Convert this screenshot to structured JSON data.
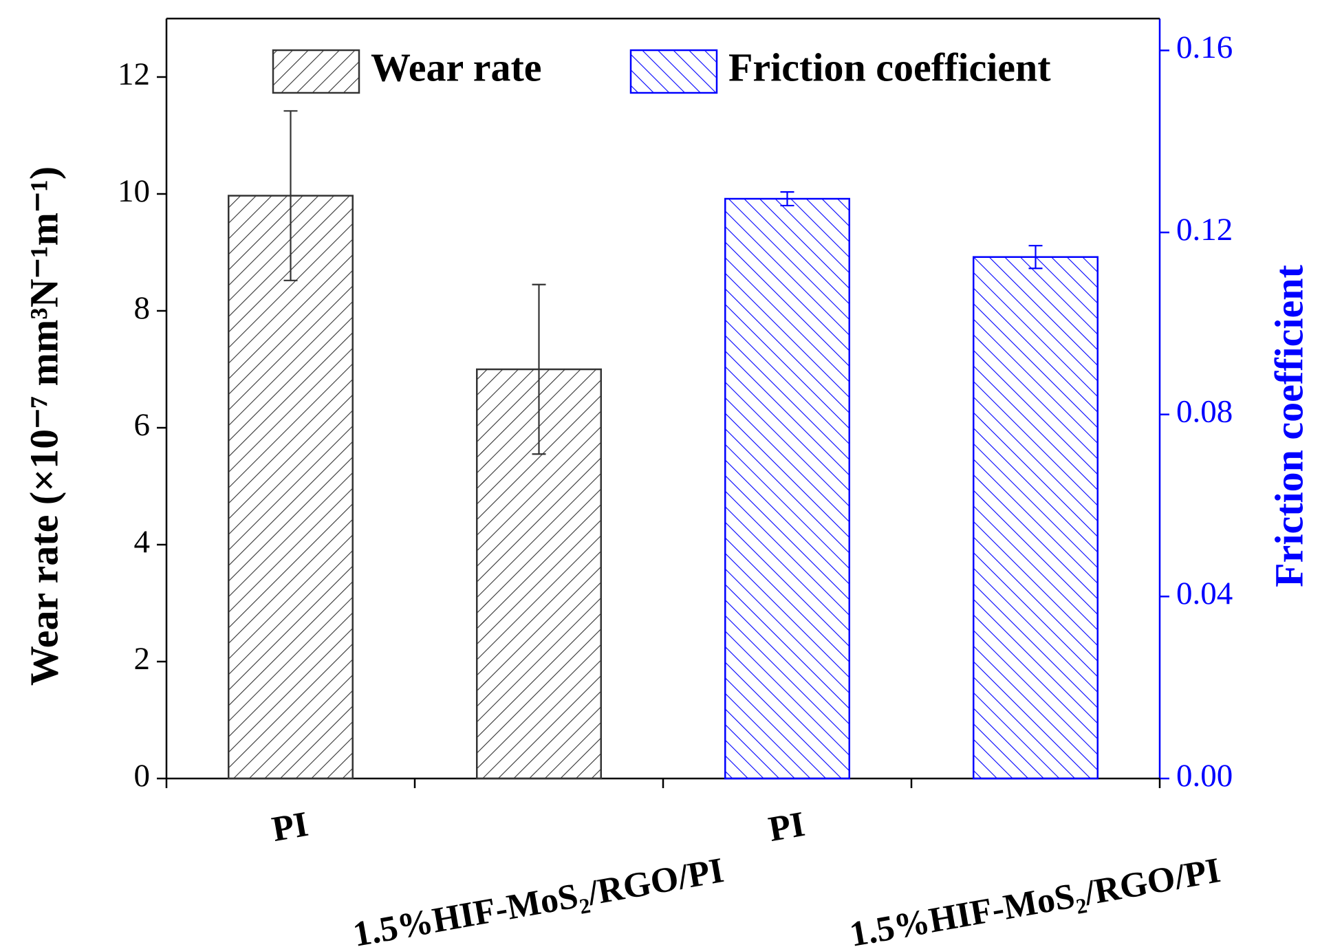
{
  "chart_data": {
    "type": "bar",
    "ylabel": "Wear rate (×10⁻⁷ mm³N⁻¹m⁻¹)",
    "y2label": "Friction coefficient",
    "categories": [
      "PI",
      "1.5%HIF-MoS₂/RGO/PI",
      "PI",
      "1.5%HIF-MoS₂/RGO/PI"
    ],
    "series": [
      {
        "name": "Wear rate",
        "color": "#333333",
        "hatch": "back",
        "values": [
          9.97,
          7.0,
          null,
          null
        ],
        "errors": [
          1.45,
          1.45,
          null,
          null
        ]
      },
      {
        "name": "Friction coefficient",
        "color": "#0000ff",
        "hatch": "forward",
        "axis": "y2",
        "values": [
          null,
          null,
          0.1274,
          0.1146
        ],
        "errors": [
          null,
          null,
          0.0015,
          0.0025
        ]
      }
    ],
    "ylim": [
      0,
      13
    ],
    "yticks": [
      0,
      2,
      4,
      6,
      8,
      10,
      12
    ],
    "y2lim": [
      0,
      0.167
    ],
    "y2ticks": [
      {
        "value": 0,
        "label": "0.00"
      },
      0.04,
      0.08,
      0.12,
      0.16
    ],
    "y2color": "#0000ff",
    "legend": "top"
  }
}
